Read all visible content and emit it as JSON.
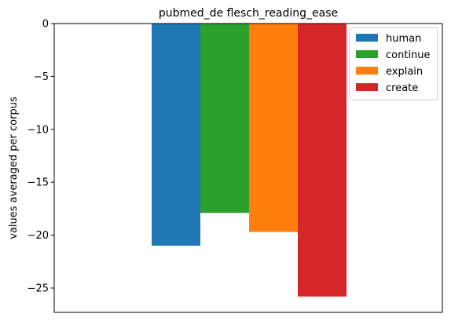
{
  "chart_data": {
    "type": "bar",
    "title": "pubmed_de flesch_reading_ease",
    "xlabel": "",
    "ylabel": "values averaged per corpus",
    "ylim": [
      -27.3,
      0
    ],
    "yticks": [
      0,
      -5,
      -10,
      -15,
      -20,
      -25
    ],
    "ytick_labels": [
      "0",
      "−5",
      "−10",
      "−15",
      "−20",
      "−25"
    ],
    "grid": false,
    "legend_position": "top-right",
    "series": [
      {
        "name": "human",
        "value": -21.0,
        "color": "#1f77b4"
      },
      {
        "name": "continue",
        "value": -17.9,
        "color": "#2ca02c"
      },
      {
        "name": "explain",
        "value": -19.7,
        "color": "#ff7f0e"
      },
      {
        "name": "create",
        "value": -25.8,
        "color": "#d62728"
      }
    ]
  }
}
